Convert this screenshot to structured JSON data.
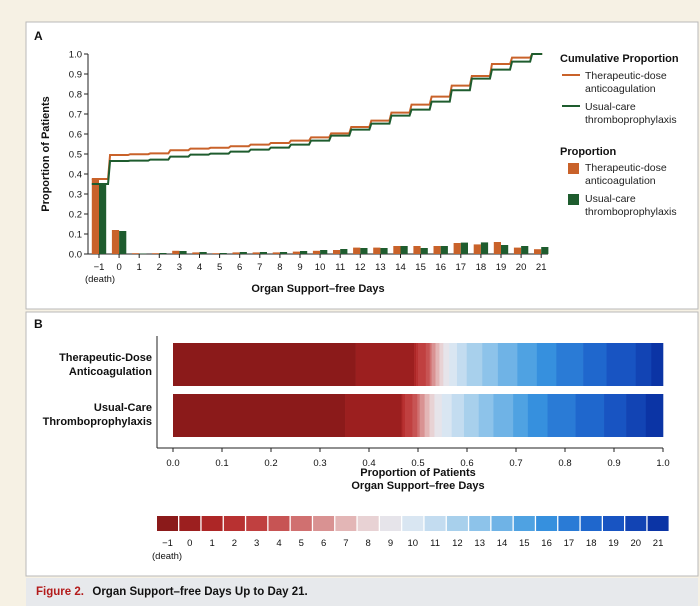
{
  "colors": {
    "therapeutic": "#c9622a",
    "usual": "#1e5c2e",
    "caption_fig": "#b31b1b"
  },
  "panel_a": {
    "letter": "A",
    "legend": {
      "cumulative_title": "Cumulative Proportion",
      "proportion_title": "Proportion",
      "therapeutic_line1": "Therapeutic-dose",
      "therapeutic_line2": "anticoagulation",
      "usual_line1": "Usual-care",
      "usual_line2": "thromboprophylaxis"
    },
    "death_label": "(death)"
  },
  "panel_b": {
    "letter": "B",
    "row_therapeutic_line1": "Therapeutic-Dose",
    "row_therapeutic_line2": "Anticoagulation",
    "row_usual_line1": "Usual-Care",
    "row_usual_line2": "Thromboprophylaxis",
    "colorbar_title": "Organ Support–free Days",
    "death_label": "(death)"
  },
  "caption": {
    "figure_label": "Figure 2.",
    "title": "Organ Support–free Days Up to Day 21."
  },
  "chart_data": [
    {
      "type": "bar",
      "panel": "A",
      "xlabel": "Organ Support–free Days",
      "ylabel": "Proportion of Patients",
      "ylim": [
        0,
        1.0
      ],
      "yticks": [
        "0.0",
        "0.1",
        "0.2",
        "0.3",
        "0.4",
        "0.5",
        "0.6",
        "0.7",
        "0.8",
        "0.9",
        "1.0"
      ],
      "categories": [
        "−1",
        "0",
        "1",
        "2",
        "3",
        "4",
        "5",
        "6",
        "7",
        "8",
        "9",
        "10",
        "11",
        "12",
        "13",
        "14",
        "15",
        "16",
        "17",
        "18",
        "19",
        "20",
        "21"
      ],
      "legend_position": "right",
      "series": [
        {
          "name": "Therapeutic-dose anticoagulation",
          "values": [
            0.375,
            0.12,
            0.004,
            0.004,
            0.016,
            0.008,
            0.004,
            0.008,
            0.008,
            0.008,
            0.012,
            0.016,
            0.02,
            0.032,
            0.032,
            0.04,
            0.04,
            0.04,
            0.055,
            0.048,
            0.06,
            0.032,
            0.024
          ]
        },
        {
          "name": "Usual-care thromboprophylaxis",
          "values": [
            0.35,
            0.115,
            0.002,
            0.005,
            0.015,
            0.01,
            0.005,
            0.01,
            0.01,
            0.01,
            0.015,
            0.02,
            0.025,
            0.03,
            0.03,
            0.04,
            0.03,
            0.04,
            0.057,
            0.058,
            0.045,
            0.04,
            0.035
          ]
        }
      ],
      "cumulative_series": [
        {
          "name": "Therapeutic-dose anticoagulation",
          "values": [
            0.375,
            0.495,
            0.499,
            0.503,
            0.519,
            0.527,
            0.531,
            0.539,
            0.547,
            0.555,
            0.567,
            0.583,
            0.603,
            0.635,
            0.667,
            0.707,
            0.747,
            0.787,
            0.842,
            0.89,
            0.95,
            0.982,
            1.0
          ]
        },
        {
          "name": "Usual-care thromboprophylaxis",
          "values": [
            0.35,
            0.465,
            0.467,
            0.472,
            0.487,
            0.497,
            0.502,
            0.512,
            0.522,
            0.532,
            0.547,
            0.567,
            0.592,
            0.622,
            0.652,
            0.692,
            0.722,
            0.762,
            0.819,
            0.877,
            0.922,
            0.962,
            1.0
          ]
        }
      ]
    },
    {
      "type": "bar",
      "orientation": "horizontal-stacked",
      "panel": "B",
      "xlabel": "Proportion of Patients",
      "xlim": [
        0,
        1.0
      ],
      "xticks": [
        "0.0",
        "0.1",
        "0.2",
        "0.3",
        "0.4",
        "0.5",
        "0.6",
        "0.7",
        "0.8",
        "0.9",
        "1.0"
      ],
      "categories": [
        "−1",
        "0",
        "1",
        "2",
        "3",
        "4",
        "5",
        "6",
        "7",
        "8",
        "9",
        "10",
        "11",
        "12",
        "13",
        "14",
        "15",
        "16",
        "17",
        "18",
        "19",
        "20",
        "21"
      ],
      "rows": [
        {
          "name": "Therapeutic-Dose Anticoagulation",
          "values": [
            0.375,
            0.12,
            0.004,
            0.004,
            0.016,
            0.008,
            0.004,
            0.008,
            0.008,
            0.008,
            0.012,
            0.016,
            0.02,
            0.032,
            0.032,
            0.04,
            0.04,
            0.04,
            0.055,
            0.048,
            0.06,
            0.032,
            0.024
          ]
        },
        {
          "name": "Usual-Care Thromboprophylaxis",
          "values": [
            0.35,
            0.115,
            0.002,
            0.005,
            0.015,
            0.01,
            0.005,
            0.01,
            0.01,
            0.01,
            0.015,
            0.02,
            0.025,
            0.03,
            0.03,
            0.04,
            0.03,
            0.04,
            0.057,
            0.058,
            0.045,
            0.04,
            0.035
          ]
        }
      ],
      "colorbar": {
        "title": "Organ Support–free Days",
        "colors": [
          "#8b1a1a",
          "#9c1f1f",
          "#ad2626",
          "#b83131",
          "#c04040",
          "#c75454",
          "#d07070",
          "#d99292",
          "#e3b6b6",
          "#e8d2d4",
          "#e6e4ea",
          "#d9e6f2",
          "#c3dcf0",
          "#a8d0ec",
          "#8dc3ea",
          "#6fb3e6",
          "#4fa2e2",
          "#3690de",
          "#2a7bd6",
          "#1f67cd",
          "#1854c2",
          "#1244b4",
          "#0b34a5"
        ]
      }
    }
  ]
}
